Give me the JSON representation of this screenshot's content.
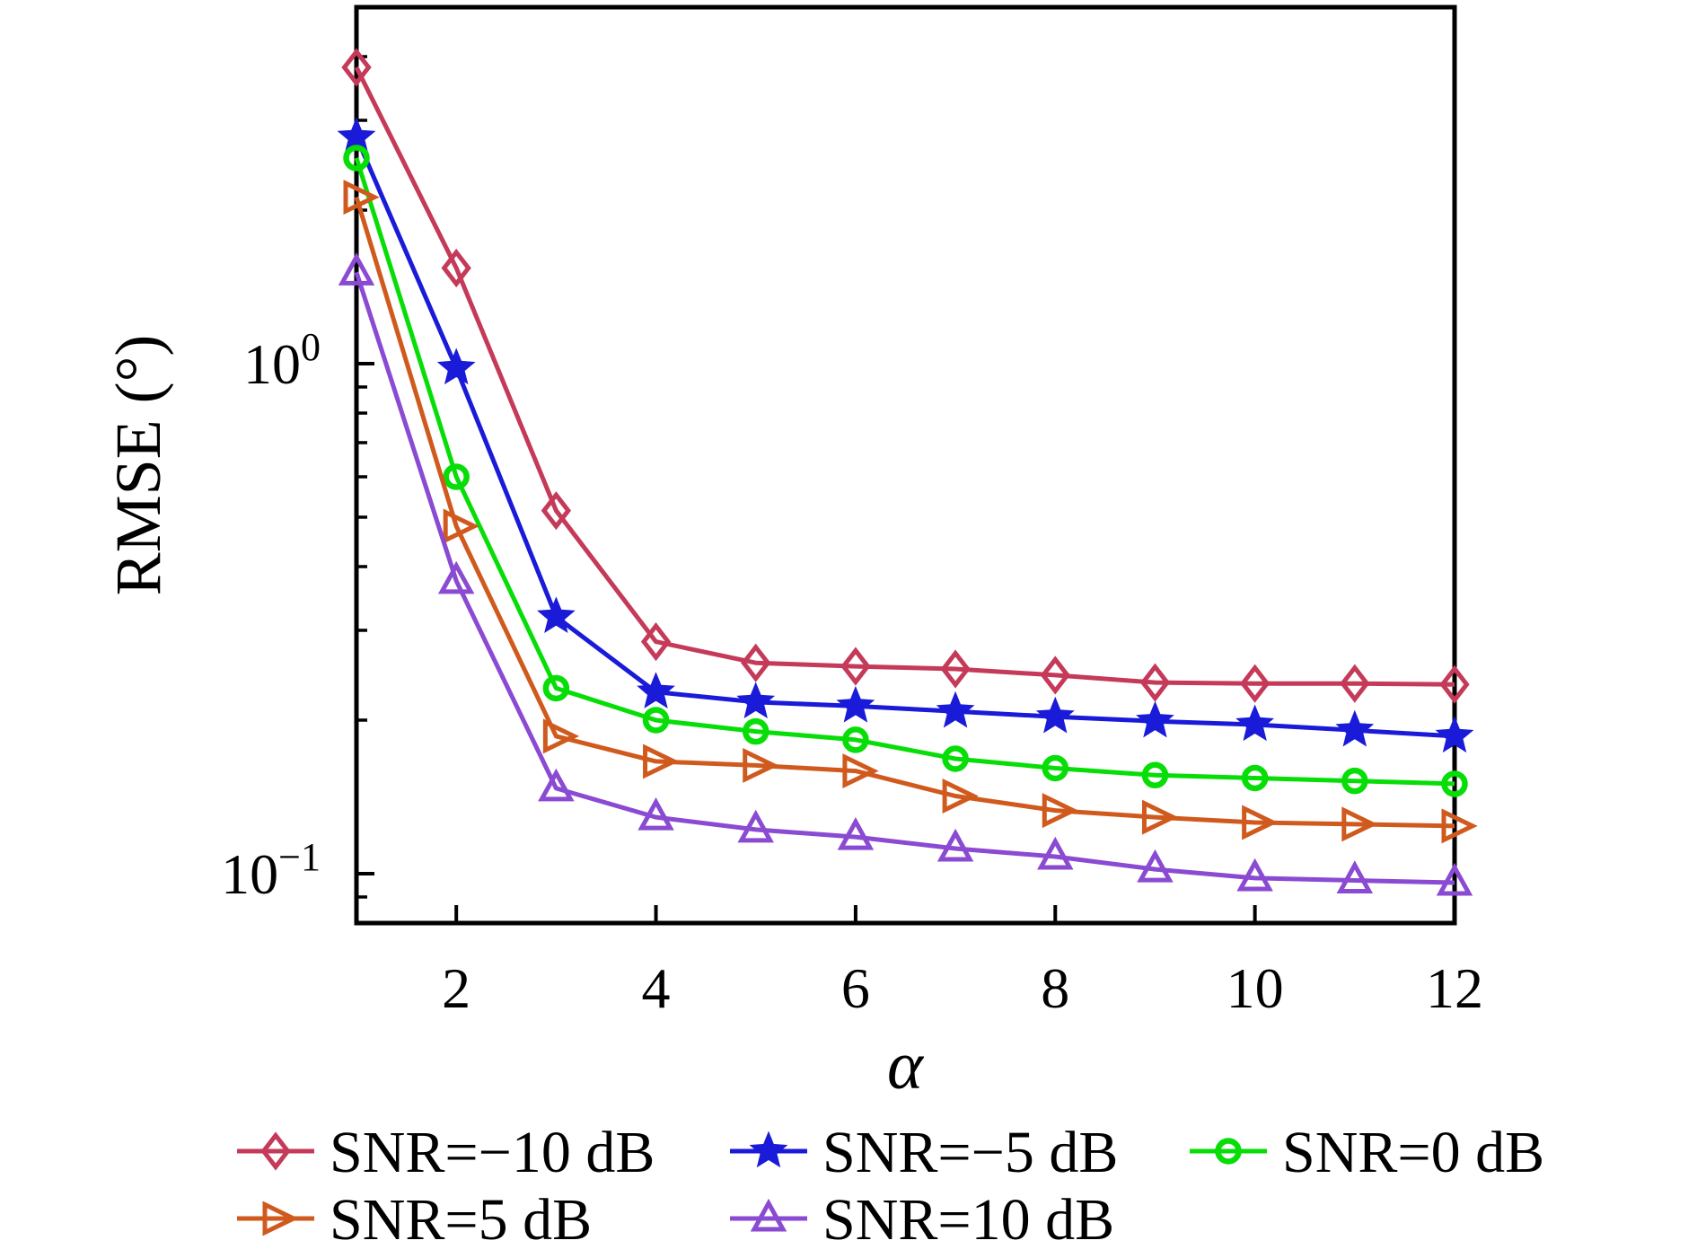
{
  "figure": {
    "background": "#ffffff",
    "title": ""
  },
  "chart_data": {
    "type": "line",
    "title": "",
    "xlabel": "α",
    "ylabel": "RMSE (°)",
    "xlim": [
      1,
      12
    ],
    "ylim": [
      0.08,
      5
    ],
    "yscale": "log",
    "grid": false,
    "legend_position": "below",
    "x": [
      1,
      2,
      3,
      4,
      5,
      6,
      7,
      8,
      9,
      10,
      11,
      12
    ],
    "x_ticks": [
      2,
      4,
      6,
      8,
      10,
      12
    ],
    "x_tick_labels": [
      "2",
      "4",
      "6",
      "8",
      "10",
      "12"
    ],
    "y_ticks": [
      {
        "value": 1,
        "base": "10",
        "exp": "0"
      },
      {
        "value": 0.1,
        "base": "10",
        "exp": "−1"
      }
    ],
    "y_minor_ticks": [
      4,
      3,
      2,
      0.9,
      0.8,
      0.7,
      0.6,
      0.5,
      0.4,
      0.3,
      0.2,
      0.09
    ],
    "series": [
      {
        "id": "snr-minus-10-db",
        "name": "SNR=−10 dB",
        "color": "#c43a58",
        "marker": "diamond",
        "values": [
          3.81,
          1.54,
          0.515,
          0.285,
          0.259,
          0.255,
          0.252,
          0.245,
          0.237,
          0.236,
          0.236,
          0.235
        ]
      },
      {
        "id": "snr-minus-5-db",
        "name": "SNR=−5 dB",
        "color": "#1a1ad9",
        "marker": "star",
        "values": [
          2.78,
          0.98,
          0.319,
          0.227,
          0.217,
          0.213,
          0.208,
          0.203,
          0.199,
          0.196,
          0.191,
          0.186
        ]
      },
      {
        "id": "snr-0-db",
        "name": "SNR=0 dB",
        "color": "#07dd07",
        "marker": "circle",
        "values": [
          2.53,
          0.6,
          0.231,
          0.2,
          0.19,
          0.183,
          0.168,
          0.161,
          0.156,
          0.154,
          0.152,
          0.15
        ]
      },
      {
        "id": "snr-5-db",
        "name": "SNR=5 dB",
        "color": "#d05a1d",
        "marker": "triangle-right",
        "values": [
          2.12,
          0.48,
          0.186,
          0.166,
          0.163,
          0.159,
          0.142,
          0.133,
          0.129,
          0.126,
          0.125,
          0.124
        ]
      },
      {
        "id": "snr-10-db",
        "name": "SNR=10 dB",
        "color": "#8a4ad2",
        "marker": "triangle-up",
        "values": [
          1.51,
          0.375,
          0.147,
          0.129,
          0.122,
          0.118,
          0.112,
          0.108,
          0.102,
          0.098,
          0.097,
          0.096
        ]
      }
    ],
    "legend_rows": [
      [
        0,
        1,
        2
      ],
      [
        3,
        4
      ]
    ]
  }
}
